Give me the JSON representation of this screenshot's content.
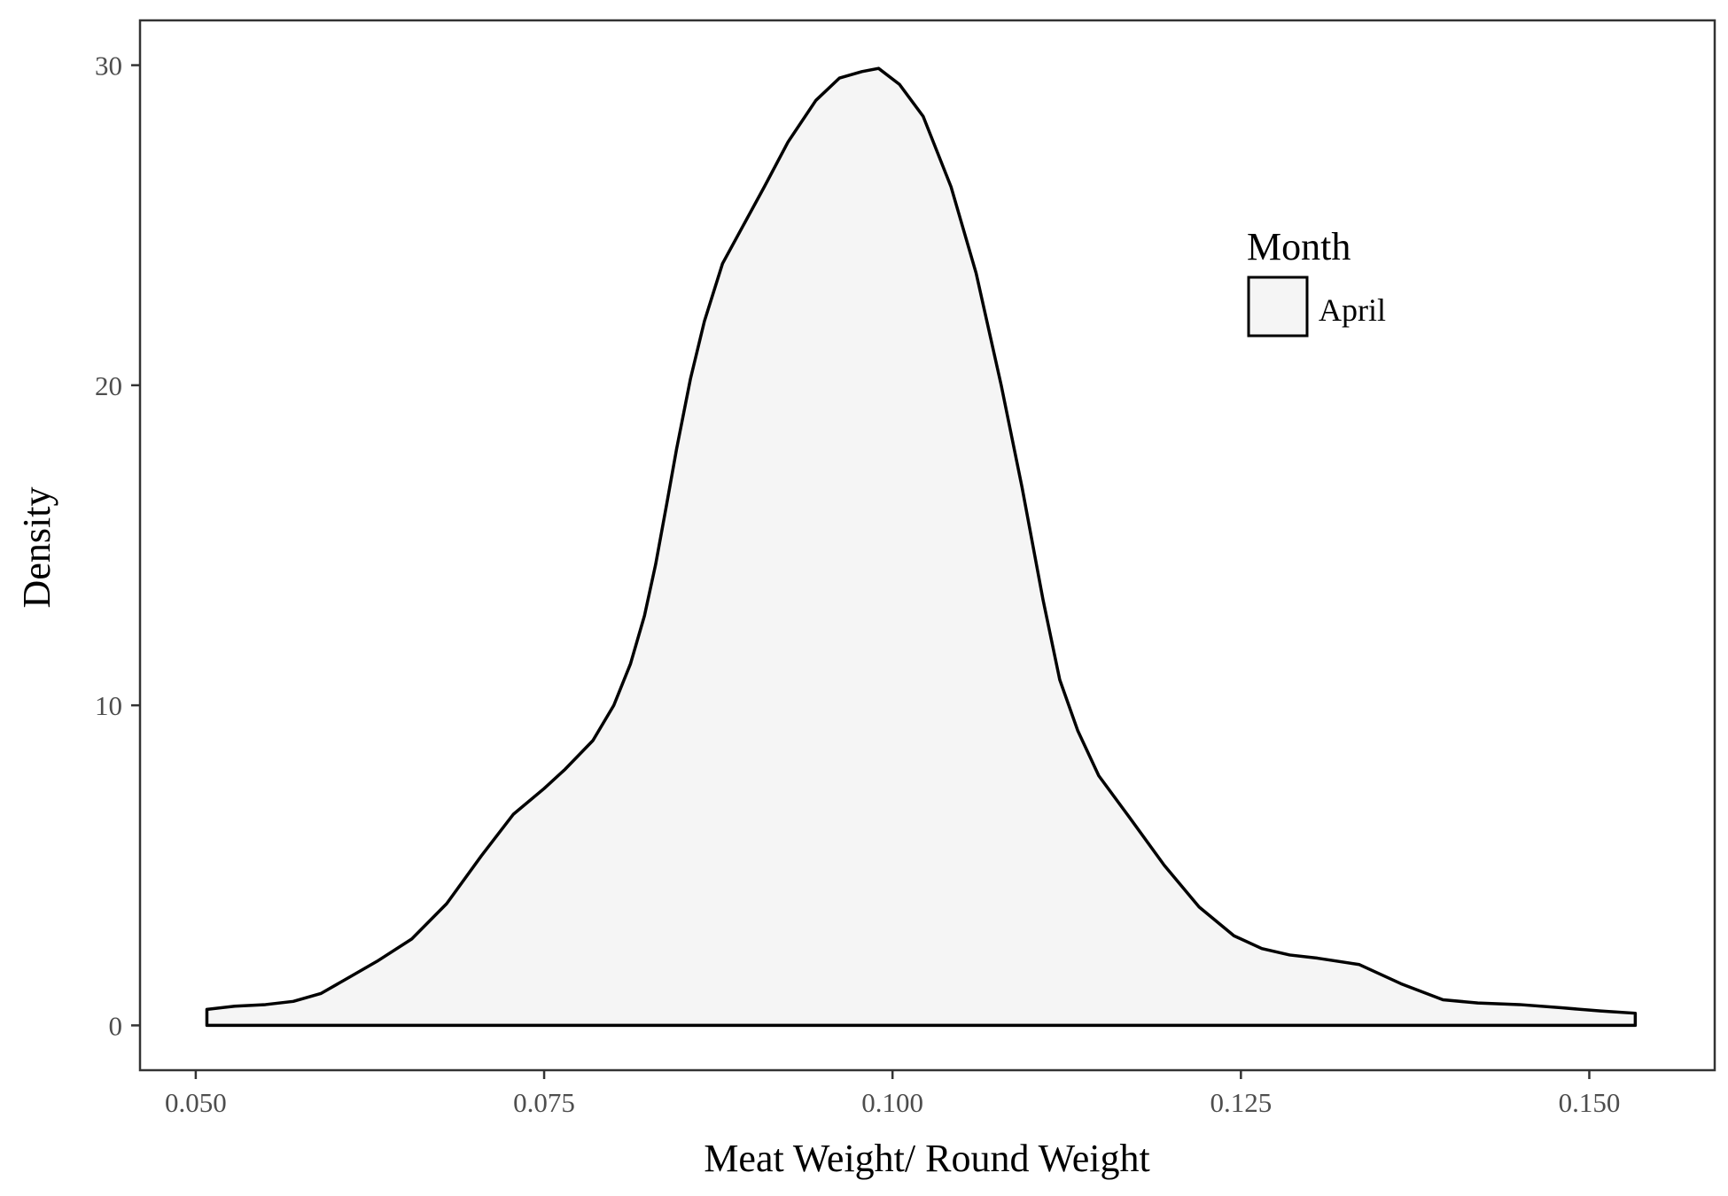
{
  "chart_data": {
    "type": "area",
    "title": "",
    "xlabel": "Meat Weight/ Round Weight",
    "ylabel": "Density",
    "xlim": [
      0.046,
      0.159
    ],
    "ylim": [
      -1.4,
      31.4
    ],
    "x_ticks": [
      0.05,
      0.075,
      0.1,
      0.125,
      0.15
    ],
    "x_tick_labels": [
      "0.050",
      "0.075",
      "0.100",
      "0.125",
      "0.150"
    ],
    "y_ticks": [
      0,
      10,
      20,
      30
    ],
    "y_tick_labels": [
      "0",
      "10",
      "20",
      "30"
    ],
    "grid": false,
    "legend": {
      "title": "Month",
      "position": "top-right",
      "entries": [
        {
          "label": "April",
          "fill": "#f5f5f5",
          "stroke": "#000000"
        }
      ]
    },
    "series": [
      {
        "name": "April",
        "fill": "#f5f5f5",
        "stroke": "#000000",
        "x": [
          0.0508,
          0.0528,
          0.055,
          0.057,
          0.059,
          0.061,
          0.063,
          0.0655,
          0.068,
          0.0705,
          0.0728,
          0.075,
          0.0765,
          0.0785,
          0.08,
          0.0812,
          0.0822,
          0.083,
          0.0838,
          0.0845,
          0.0855,
          0.0865,
          0.0878,
          0.0893,
          0.0908,
          0.0925,
          0.0945,
          0.0962,
          0.0978,
          0.099,
          0.1005,
          0.1022,
          0.1042,
          0.106,
          0.1078,
          0.1093,
          0.1108,
          0.112,
          0.1133,
          0.1148,
          0.117,
          0.1195,
          0.122,
          0.1245,
          0.1265,
          0.1285,
          0.1305,
          0.1335,
          0.1365,
          0.1395,
          0.142,
          0.145,
          0.148,
          0.1508,
          0.1533
        ],
        "y": [
          0.5,
          0.6,
          0.65,
          0.75,
          1.0,
          1.5,
          2.0,
          2.7,
          3.8,
          5.3,
          6.6,
          7.4,
          8.0,
          8.9,
          10.0,
          11.3,
          12.8,
          14.4,
          16.3,
          18.0,
          20.2,
          22.0,
          23.8,
          25.0,
          26.2,
          27.6,
          28.9,
          29.6,
          29.8,
          29.9,
          29.4,
          28.4,
          26.2,
          23.5,
          20.0,
          16.8,
          13.3,
          10.8,
          9.2,
          7.8,
          6.5,
          5.0,
          3.7,
          2.8,
          2.4,
          2.2,
          2.1,
          1.9,
          1.3,
          0.8,
          0.7,
          0.65,
          0.55,
          0.45,
          0.38
        ]
      }
    ]
  }
}
